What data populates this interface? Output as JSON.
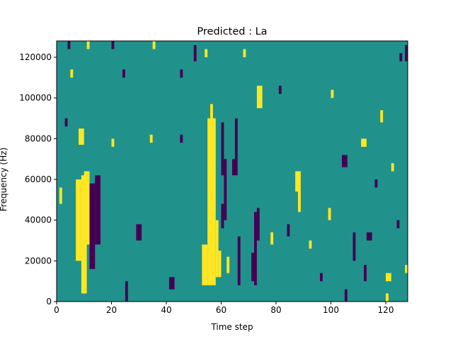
{
  "chart_data": {
    "type": "heatmap",
    "title": "Predicted : La",
    "xlabel": "Time step",
    "ylabel": "Frequency (Hz)",
    "xlim": [
      0,
      128
    ],
    "ylim": [
      0,
      128000
    ],
    "x_ticks": [
      0,
      20,
      40,
      60,
      80,
      100,
      120
    ],
    "x_tick_labels": [
      "0",
      "20",
      "40",
      "60",
      "80",
      "100",
      "120"
    ],
    "y_ticks": [
      0,
      20000,
      40000,
      60000,
      80000,
      100000,
      120000
    ],
    "y_tick_labels": [
      "0",
      "20000",
      "40000",
      "60000",
      "80000",
      "100000",
      "120000"
    ],
    "colormap": "viridis",
    "colors": {
      "low": "#440154",
      "mid": "#21918c",
      "high": "#fde725",
      "axis": "#000000",
      "background": "#ffffff"
    },
    "grid": false,
    "base_level": "mid",
    "cells": [
      {
        "x": [
          9,
          11
        ],
        "y": [
          4000,
          62000
        ],
        "level": "high"
      },
      {
        "x": [
          8,
          10
        ],
        "y": [
          77000,
          85000
        ],
        "level": "high"
      },
      {
        "x": [
          10,
          12
        ],
        "y": [
          28000,
          64000
        ],
        "level": "high"
      },
      {
        "x": [
          7,
          9
        ],
        "y": [
          20000,
          60000
        ],
        "level": "high"
      },
      {
        "x": [
          12,
          14
        ],
        "y": [
          16000,
          58000
        ],
        "level": "low"
      },
      {
        "x": [
          14,
          16
        ],
        "y": [
          28000,
          62000
        ],
        "level": "low"
      },
      {
        "x": [
          13,
          14
        ],
        "y": [
          48000,
          58000
        ],
        "level": "low"
      },
      {
        "x": [
          55,
          58
        ],
        "y": [
          8000,
          90000
        ],
        "level": "high"
      },
      {
        "x": [
          56,
          57
        ],
        "y": [
          90000,
          97000
        ],
        "level": "high"
      },
      {
        "x": [
          53,
          55
        ],
        "y": [
          8000,
          28000
        ],
        "level": "high"
      },
      {
        "x": [
          58,
          59
        ],
        "y": [
          12000,
          40000
        ],
        "level": "high"
      },
      {
        "x": [
          59,
          60
        ],
        "y": [
          12000,
          25000
        ],
        "level": "high"
      },
      {
        "x": [
          60,
          61
        ],
        "y": [
          62000,
          88000
        ],
        "level": "low"
      },
      {
        "x": [
          61,
          62
        ],
        "y": [
          40000,
          70000
        ],
        "level": "low"
      },
      {
        "x": [
          60,
          61
        ],
        "y": [
          36000,
          48000
        ],
        "level": "low"
      },
      {
        "x": [
          62,
          63
        ],
        "y": [
          14000,
          22000
        ],
        "level": "high"
      },
      {
        "x": [
          66,
          67
        ],
        "y": [
          8000,
          32000
        ],
        "level": "low"
      },
      {
        "x": [
          65,
          66
        ],
        "y": [
          70000,
          90000
        ],
        "level": "low"
      },
      {
        "x": [
          64,
          66
        ],
        "y": [
          62000,
          70000
        ],
        "level": "low"
      },
      {
        "x": [
          72,
          73
        ],
        "y": [
          8000,
          44000
        ],
        "level": "low"
      },
      {
        "x": [
          73,
          74
        ],
        "y": [
          30000,
          46000
        ],
        "level": "low"
      },
      {
        "x": [
          71,
          72
        ],
        "y": [
          10000,
          24000
        ],
        "level": "low"
      },
      {
        "x": [
          73,
          75
        ],
        "y": [
          95000,
          106000
        ],
        "level": "high"
      },
      {
        "x": [
          88,
          89
        ],
        "y": [
          44000,
          64000
        ],
        "level": "high"
      },
      {
        "x": [
          87,
          88
        ],
        "y": [
          54000,
          64000
        ],
        "level": "high"
      },
      {
        "x": [
          120,
          121
        ],
        "y": [
          0,
          4000
        ],
        "level": "high"
      },
      {
        "x": [
          120,
          122
        ],
        "y": [
          10000,
          14000
        ],
        "level": "high"
      },
      {
        "x": [
          127,
          128
        ],
        "y": [
          14000,
          18000
        ],
        "level": "high"
      },
      {
        "x": [
          25,
          26
        ],
        "y": [
          0,
          10000
        ],
        "level": "low"
      },
      {
        "x": [
          105,
          106
        ],
        "y": [
          0,
          6000
        ],
        "level": "low"
      },
      {
        "x": [
          113,
          115
        ],
        "y": [
          30000,
          34000
        ],
        "level": "low"
      },
      {
        "x": [
          111,
          113
        ],
        "y": [
          76000,
          80000
        ],
        "level": "high"
      },
      {
        "x": [
          4,
          5
        ],
        "y": [
          124000,
          128000
        ],
        "level": "low"
      },
      {
        "x": [
          11,
          12
        ],
        "y": [
          124000,
          128000
        ],
        "level": "high"
      },
      {
        "x": [
          20,
          21
        ],
        "y": [
          124000,
          128000
        ],
        "level": "low"
      },
      {
        "x": [
          35,
          36
        ],
        "y": [
          124000,
          128000
        ],
        "level": "high"
      },
      {
        "x": [
          50,
          51
        ],
        "y": [
          118000,
          126000
        ],
        "level": "low"
      },
      {
        "x": [
          54,
          55
        ],
        "y": [
          120000,
          124000
        ],
        "level": "high"
      },
      {
        "x": [
          68,
          69
        ],
        "y": [
          120000,
          124000
        ],
        "level": "high"
      },
      {
        "x": [
          125,
          126
        ],
        "y": [
          118000,
          122000
        ],
        "level": "low"
      },
      {
        "x": [
          127,
          128
        ],
        "y": [
          118000,
          126000
        ],
        "level": "low"
      },
      {
        "x": [
          5,
          6
        ],
        "y": [
          110000,
          114000
        ],
        "level": "high"
      },
      {
        "x": [
          24,
          25
        ],
        "y": [
          110000,
          114000
        ],
        "level": "low"
      },
      {
        "x": [
          45,
          46
        ],
        "y": [
          110000,
          114000
        ],
        "level": "low"
      },
      {
        "x": [
          100,
          101
        ],
        "y": [
          100000,
          104000
        ],
        "level": "high"
      },
      {
        "x": [
          81,
          82
        ],
        "y": [
          102000,
          106000
        ],
        "level": "low"
      },
      {
        "x": [
          118,
          119
        ],
        "y": [
          88000,
          94000
        ],
        "level": "high"
      },
      {
        "x": [
          3,
          4
        ],
        "y": [
          86000,
          90000
        ],
        "level": "low"
      },
      {
        "x": [
          20,
          21
        ],
        "y": [
          76000,
          80000
        ],
        "level": "high"
      },
      {
        "x": [
          34,
          35
        ],
        "y": [
          78000,
          82000
        ],
        "level": "high"
      },
      {
        "x": [
          45,
          46
        ],
        "y": [
          78000,
          82000
        ],
        "level": "low"
      },
      {
        "x": [
          104,
          106
        ],
        "y": [
          66000,
          72000
        ],
        "level": "low"
      },
      {
        "x": [
          122,
          123
        ],
        "y": [
          64000,
          68000
        ],
        "level": "high"
      },
      {
        "x": [
          116,
          117
        ],
        "y": [
          56000,
          60000
        ],
        "level": "low"
      },
      {
        "x": [
          1,
          2
        ],
        "y": [
          48000,
          56000
        ],
        "level": "high"
      },
      {
        "x": [
          29,
          31
        ],
        "y": [
          30000,
          38000
        ],
        "level": "low"
      },
      {
        "x": [
          41,
          43
        ],
        "y": [
          6000,
          12000
        ],
        "level": "low"
      },
      {
        "x": [
          92,
          93
        ],
        "y": [
          26000,
          30000
        ],
        "level": "high"
      },
      {
        "x": [
          99,
          100
        ],
        "y": [
          40000,
          46000
        ],
        "level": "high"
      },
      {
        "x": [
          108,
          109
        ],
        "y": [
          20000,
          34000
        ],
        "level": "low"
      },
      {
        "x": [
          112,
          113
        ],
        "y": [
          10000,
          18000
        ],
        "level": "low"
      },
      {
        "x": [
          124,
          125
        ],
        "y": [
          36000,
          40000
        ],
        "level": "low"
      },
      {
        "x": [
          78,
          79
        ],
        "y": [
          28000,
          34000
        ],
        "level": "high"
      },
      {
        "x": [
          84,
          85
        ],
        "y": [
          32000,
          38000
        ],
        "level": "low"
      },
      {
        "x": [
          96,
          97
        ],
        "y": [
          10000,
          14000
        ],
        "level": "low"
      }
    ]
  }
}
